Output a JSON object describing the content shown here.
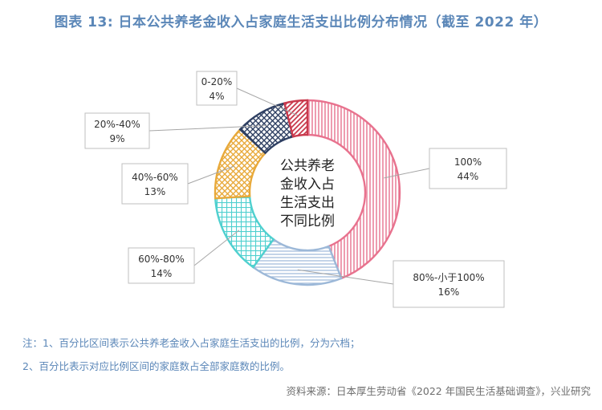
{
  "title": "图表 13: 日本公共养老金收入占家庭生活支出比例分布情况（截至 2022 年）",
  "chart_data": {
    "type": "pie",
    "variant": "donut",
    "center_label": [
      "公共养老",
      "金收入占",
      "生活支出",
      "不同比例"
    ],
    "slices": [
      {
        "category": "100%",
        "value": 44,
        "value_label": "44%",
        "color": "#e8728e",
        "pattern": "vertical-lines"
      },
      {
        "category": "80%-小于100%",
        "value": 16,
        "value_label": "16%",
        "color": "#9cb8d8",
        "pattern": "horizontal-lines"
      },
      {
        "category": "60%-80%",
        "value": 14,
        "value_label": "14%",
        "color": "#4fd0cf",
        "pattern": "grid"
      },
      {
        "category": "40%-60%",
        "value": 13,
        "value_label": "13%",
        "color": "#e8a93a",
        "pattern": "crosshatch"
      },
      {
        "category": "20%-40%",
        "value": 9,
        "value_label": "9%",
        "color": "#2e3f62",
        "pattern": "crosshatch"
      },
      {
        "category": "0-20%",
        "value": 4,
        "value_label": "4%",
        "color": "#c93a4d",
        "pattern": "diagonal"
      }
    ]
  },
  "notes": {
    "line1": "注：1、百分比区间表示公共养老金收入占家庭生活支出的比例，分为六档；",
    "line2": "2、百分比表示对应比例区间的家庭数占全部家庭数的比例。"
  },
  "source": "资料来源：日本厚生劳动省《2022 年国民生活基础调查》，兴业研究"
}
